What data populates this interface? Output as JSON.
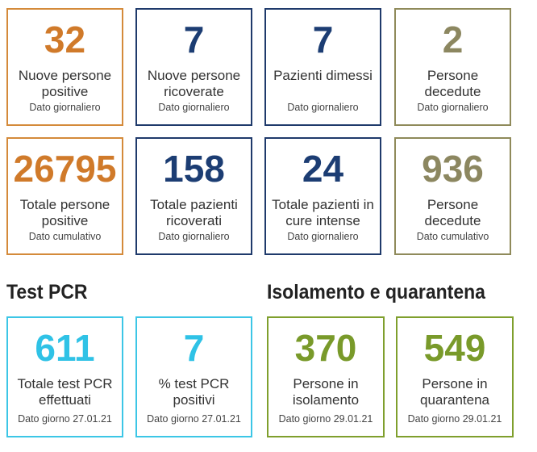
{
  "colors": {
    "orange": "#d07a2a",
    "navy": "#1c3d73",
    "olive": "#8c8760",
    "cyan": "#2fc2e6",
    "green": "#799a2a"
  },
  "daily": [
    {
      "value": "32",
      "label": "Nuove persone positive",
      "note": "Dato giornaliero"
    },
    {
      "value": "7",
      "label": "Nuove persone ricoverate",
      "note": "Dato giornaliero"
    },
    {
      "value": "7",
      "label": "Pazienti dimessi",
      "note": "Dato giornaliero"
    },
    {
      "value": "2",
      "label": "Persone decedute",
      "note": "Dato giornaliero"
    }
  ],
  "totals": [
    {
      "value": "26795",
      "label": "Totale persone positive",
      "note": "Dato cumulativo"
    },
    {
      "value": "158",
      "label": "Totale pazienti ricoverati",
      "note": "Dato giornaliero"
    },
    {
      "value": "24",
      "label": "Totale pazienti in cure intense",
      "note": "Dato giornaliero"
    },
    {
      "value": "936",
      "label": "Persone decedute",
      "note": "Dato cumulativo"
    }
  ],
  "sections": {
    "pcr_title": "Test PCR",
    "isolation_title": "Isolamento e quarantena"
  },
  "pcr": [
    {
      "value": "611",
      "label": "Totale test PCR effettuati",
      "note": "Dato giorno 27.01.21"
    },
    {
      "value": "7",
      "label": "% test PCR positivi",
      "note": "Dato giorno 27.01.21"
    }
  ],
  "isolation": [
    {
      "value": "370",
      "label": "Persone in isolamento",
      "note": "Dato giorno 29.01.21"
    },
    {
      "value": "549",
      "label": "Persone in quarantena",
      "note": "Dato giorno 29.01.21"
    }
  ]
}
